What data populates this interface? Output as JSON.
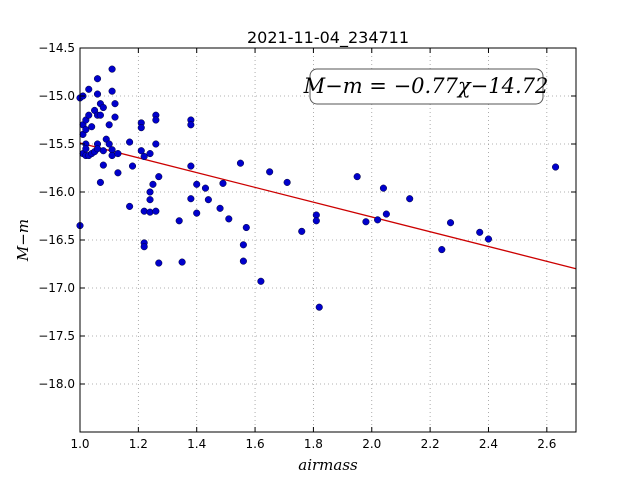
{
  "chart_data": {
    "type": "scatter",
    "title": "2021-11-04_234711",
    "xlabel": "airmass",
    "ylabel": "M−m",
    "xlim": [
      1.0,
      2.7
    ],
    "ylim": [
      -18.5,
      -14.5
    ],
    "y_inverted": true,
    "grid": true,
    "grid_style": "dotted",
    "x_ticks": [
      "1.0",
      "1.2",
      "1.4",
      "1.6",
      "1.8",
      "2.0",
      "2.2",
      "2.4",
      "2.6"
    ],
    "y_ticks": [
      "−14.5",
      "−15.0",
      "−15.5",
      "−16.0",
      "−16.5",
      "−17.0",
      "−17.5",
      "−18.0"
    ],
    "annotation": "M−m = −0.77χ−14.72",
    "fit_line": {
      "slope": -0.77,
      "intercept": -14.72,
      "color": "#cc0000"
    },
    "marker_color": "#0000cc",
    "points": [
      [
        1.0,
        -16.35
      ],
      [
        1.0,
        -15.02
      ],
      [
        1.01,
        -15.0
      ],
      [
        1.01,
        -15.3
      ],
      [
        1.01,
        -15.4
      ],
      [
        1.01,
        -15.6
      ],
      [
        1.02,
        -15.25
      ],
      [
        1.02,
        -15.35
      ],
      [
        1.02,
        -15.5
      ],
      [
        1.02,
        -15.55
      ],
      [
        1.02,
        -15.62
      ],
      [
        1.03,
        -14.93
      ],
      [
        1.03,
        -15.2
      ],
      [
        1.03,
        -15.62
      ],
      [
        1.04,
        -15.32
      ],
      [
        1.04,
        -15.6
      ],
      [
        1.05,
        -15.15
      ],
      [
        1.05,
        -15.58
      ],
      [
        1.06,
        -14.82
      ],
      [
        1.06,
        -14.98
      ],
      [
        1.06,
        -15.2
      ],
      [
        1.06,
        -15.5
      ],
      [
        1.06,
        -15.55
      ],
      [
        1.07,
        -15.08
      ],
      [
        1.07,
        -15.9
      ],
      [
        1.07,
        -15.2
      ],
      [
        1.08,
        -15.12
      ],
      [
        1.08,
        -15.57
      ],
      [
        1.08,
        -15.72
      ],
      [
        1.09,
        -15.45
      ],
      [
        1.1,
        -15.3
      ],
      [
        1.1,
        -15.5
      ],
      [
        1.11,
        -14.72
      ],
      [
        1.11,
        -14.95
      ],
      [
        1.11,
        -15.56
      ],
      [
        1.11,
        -15.62
      ],
      [
        1.12,
        -15.08
      ],
      [
        1.12,
        -15.22
      ],
      [
        1.13,
        -15.6
      ],
      [
        1.13,
        -15.8
      ],
      [
        1.17,
        -15.48
      ],
      [
        1.17,
        -16.15
      ],
      [
        1.18,
        -15.73
      ],
      [
        1.21,
        -15.28
      ],
      [
        1.21,
        -15.33
      ],
      [
        1.21,
        -15.57
      ],
      [
        1.22,
        -15.63
      ],
      [
        1.22,
        -16.2
      ],
      [
        1.22,
        -16.53
      ],
      [
        1.22,
        -16.57
      ],
      [
        1.24,
        -15.6
      ],
      [
        1.24,
        -16.0
      ],
      [
        1.24,
        -16.08
      ],
      [
        1.24,
        -16.21
      ],
      [
        1.25,
        -15.92
      ],
      [
        1.26,
        -15.2
      ],
      [
        1.26,
        -15.25
      ],
      [
        1.26,
        -15.5
      ],
      [
        1.26,
        -16.2
      ],
      [
        1.27,
        -15.84
      ],
      [
        1.27,
        -16.74
      ],
      [
        1.34,
        -16.3
      ],
      [
        1.35,
        -16.73
      ],
      [
        1.38,
        -15.25
      ],
      [
        1.38,
        -15.3
      ],
      [
        1.38,
        -15.73
      ],
      [
        1.38,
        -16.07
      ],
      [
        1.4,
        -15.92
      ],
      [
        1.4,
        -16.22
      ],
      [
        1.43,
        -15.96
      ],
      [
        1.44,
        -16.08
      ],
      [
        1.48,
        -16.17
      ],
      [
        1.49,
        -15.91
      ],
      [
        1.51,
        -16.28
      ],
      [
        1.55,
        -15.7
      ],
      [
        1.56,
        -16.55
      ],
      [
        1.56,
        -16.72
      ],
      [
        1.57,
        -16.37
      ],
      [
        1.62,
        -16.93
      ],
      [
        1.65,
        -15.79
      ],
      [
        1.71,
        -15.9
      ],
      [
        1.76,
        -16.41
      ],
      [
        1.81,
        -16.24
      ],
      [
        1.81,
        -16.3
      ],
      [
        1.82,
        -17.2
      ],
      [
        1.95,
        -15.84
      ],
      [
        1.98,
        -16.31
      ],
      [
        2.02,
        -16.29
      ],
      [
        2.04,
        -15.96
      ],
      [
        2.05,
        -16.23
      ],
      [
        2.13,
        -16.07
      ],
      [
        2.24,
        -16.6
      ],
      [
        2.27,
        -16.32
      ],
      [
        2.37,
        -16.42
      ],
      [
        2.4,
        -16.49
      ],
      [
        2.63,
        -15.74
      ]
    ]
  }
}
